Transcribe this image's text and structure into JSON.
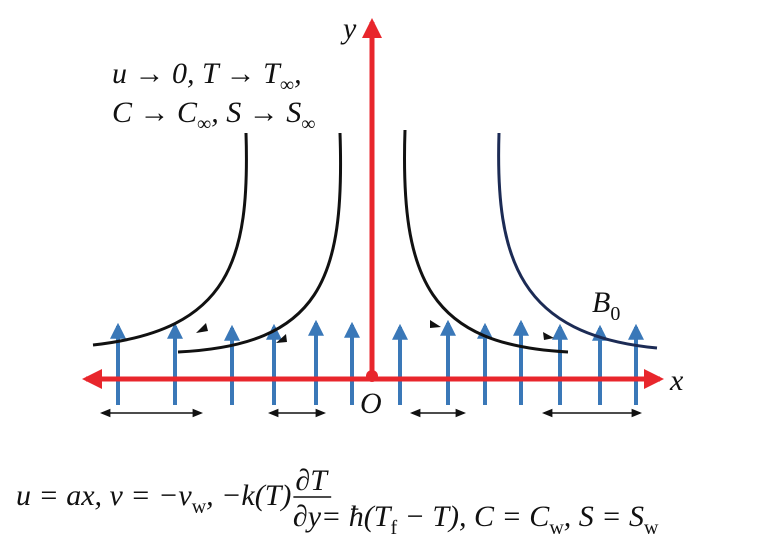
{
  "axes": {
    "x": "x",
    "y": "y",
    "origin": "O"
  },
  "field": {
    "symbol": "B",
    "subscript": "0"
  },
  "far_conditions": [
    [
      {
        "text": "u → 0, T → T"
      },
      {
        "text": "∞",
        "sub": true
      },
      {
        "text": ","
      }
    ],
    [
      {
        "text": "C → C"
      },
      {
        "text": "∞",
        "sub": true
      },
      {
        "text": ", S → S"
      },
      {
        "text": "∞",
        "sub": true
      }
    ]
  ],
  "wall_conditions": [
    {
      "text": "u = ax, v = −v"
    },
    {
      "text": "w",
      "sub": true
    },
    {
      "text": ", −k(T)"
    },
    {
      "frac": [
        "∂T",
        "∂y"
      ]
    },
    {
      "text": "= ħ(T"
    },
    {
      "text": "f",
      "sub": true
    },
    {
      "text": " − T), C = C"
    },
    {
      "text": "w",
      "sub": true
    },
    {
      "text": ", S = S"
    },
    {
      "text": "w",
      "sub": true
    }
  ]
}
